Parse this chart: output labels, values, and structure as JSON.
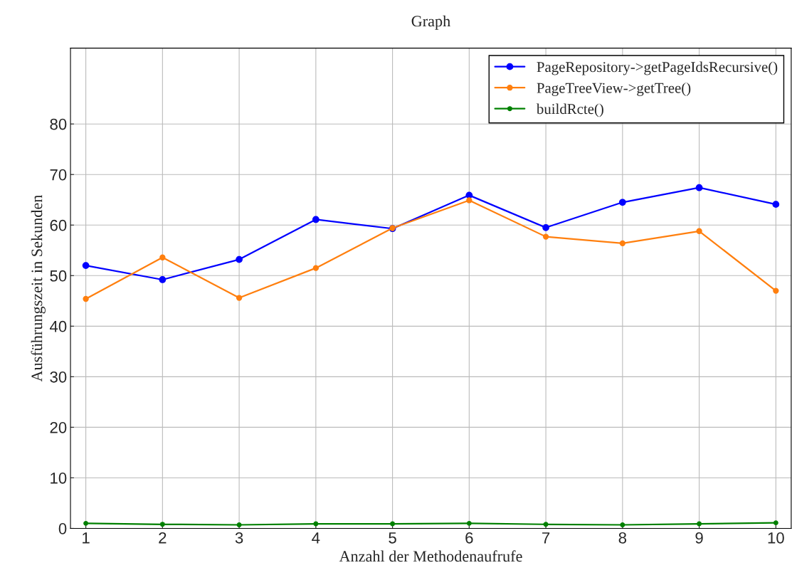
{
  "chart_data": {
    "type": "line",
    "title": "Graph",
    "xlabel": "Anzahl der Methodenaufrufe",
    "ylabel": "Ausführungszeit in Sekunden",
    "x": [
      1,
      2,
      3,
      4,
      5,
      6,
      7,
      8,
      9,
      10
    ],
    "series": [
      {
        "name": "PageRepository->getPageIdsRecursive()",
        "color": "#0000ff",
        "values": [
          52.0,
          49.2,
          53.2,
          61.1,
          59.3,
          65.9,
          59.5,
          64.5,
          67.4,
          64.1
        ]
      },
      {
        "name": "PageTreeView->getTree()",
        "color": "#ff7f0e",
        "values": [
          45.4,
          53.6,
          45.6,
          51.5,
          59.4,
          64.9,
          57.7,
          56.4,
          58.8,
          47.0
        ]
      },
      {
        "name": "buildRcte()",
        "color": "#008000",
        "values": [
          1.0,
          0.8,
          0.7,
          0.9,
          0.9,
          1.0,
          0.8,
          0.7,
          0.9,
          1.1
        ]
      }
    ],
    "xlim": [
      0.8,
      10.2
    ],
    "xticks": [
      1,
      2,
      3,
      4,
      5,
      6,
      7,
      8,
      9,
      10
    ],
    "ylim": [
      0,
      95
    ],
    "yticks": [
      0,
      10,
      20,
      30,
      40,
      50,
      60,
      70,
      80
    ],
    "grid": true,
    "legend": "top right",
    "marker": "circle",
    "line_style": "solid"
  }
}
